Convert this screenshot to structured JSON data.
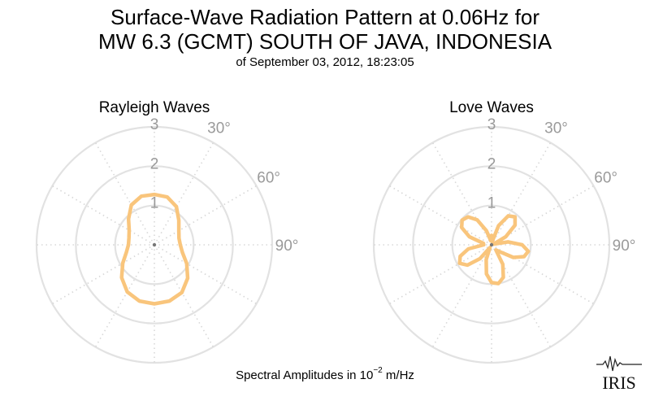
{
  "title": {
    "line1": "Surface-Wave Radiation Pattern at 0.06Hz for",
    "line2": "MW 6.3 (GCMT) SOUTH OF JAVA, INDONESIA",
    "subtitle": "of September 03, 2012, 18:23:05"
  },
  "footer": {
    "prefix": "Spectral Amplitudes in ",
    "base": "10",
    "exponent": "−2",
    "unit": " m/Hz"
  },
  "logo_text": "IRIS",
  "chart_data": [
    {
      "type": "polar",
      "title": "Rayleigh Waves",
      "r_ticks": [
        "1",
        "2",
        "3"
      ],
      "angle_labels": [
        "30°",
        "60°",
        "90°"
      ],
      "rlim": [
        0,
        3
      ],
      "color": "#f9c57c",
      "theta_deg": [
        0,
        15,
        30,
        45,
        60,
        75,
        90,
        105,
        120,
        135,
        150,
        165,
        180,
        195,
        210,
        225,
        240,
        255,
        270,
        285,
        300,
        315,
        330,
        345,
        360
      ],
      "r": [
        1.28,
        1.26,
        1.12,
        0.88,
        0.72,
        0.65,
        0.66,
        0.74,
        0.95,
        1.2,
        1.4,
        1.48,
        1.5,
        1.48,
        1.38,
        1.18,
        0.93,
        0.74,
        0.66,
        0.67,
        0.74,
        0.93,
        1.17,
        1.28,
        1.28
      ]
    },
    {
      "type": "polar",
      "title": "Love Waves",
      "r_ticks": [
        "1",
        "2",
        "3"
      ],
      "angle_labels": [
        "30°",
        "60°",
        "90°"
      ],
      "rlim": [
        0,
        3
      ],
      "color": "#f9c57c",
      "theta_deg": [
        0,
        10,
        20,
        30,
        40,
        50,
        60,
        70,
        80,
        90,
        100,
        110,
        120,
        130,
        140,
        150,
        160,
        170,
        180,
        190,
        200,
        210,
        220,
        230,
        240,
        250,
        260,
        270,
        280,
        290,
        300,
        310,
        320,
        330,
        340,
        350,
        360
      ],
      "r": [
        0.24,
        0.08,
        0.52,
        0.85,
        0.93,
        0.78,
        0.42,
        0.05,
        0.43,
        0.78,
        0.95,
        0.88,
        0.64,
        0.27,
        0.17,
        0.57,
        0.88,
        1.0,
        0.96,
        0.75,
        0.4,
        0.08,
        0.46,
        0.8,
        0.94,
        0.85,
        0.6,
        0.2,
        0.21,
        0.6,
        0.88,
        0.98,
        0.93,
        0.73,
        0.38,
        0.1,
        0.24
      ]
    }
  ]
}
